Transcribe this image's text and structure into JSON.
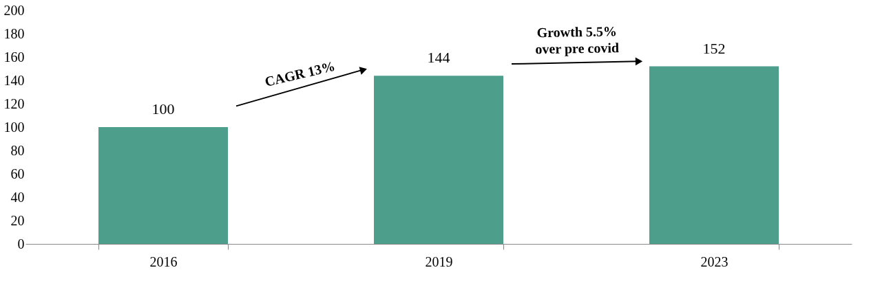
{
  "chart_data": {
    "type": "bar",
    "categories": [
      "2016",
      "2019",
      "2023"
    ],
    "values": [
      100,
      144,
      152
    ],
    "color": "#4e9e8c",
    "ylim": [
      0,
      200
    ],
    "yticks": [
      0,
      20,
      40,
      60,
      80,
      100,
      120,
      140,
      160,
      180,
      200
    ],
    "grid": false,
    "data_labels": true,
    "annotations": [
      "CAGR 13%",
      "Growth 5.5%\nover pre covid"
    ]
  }
}
